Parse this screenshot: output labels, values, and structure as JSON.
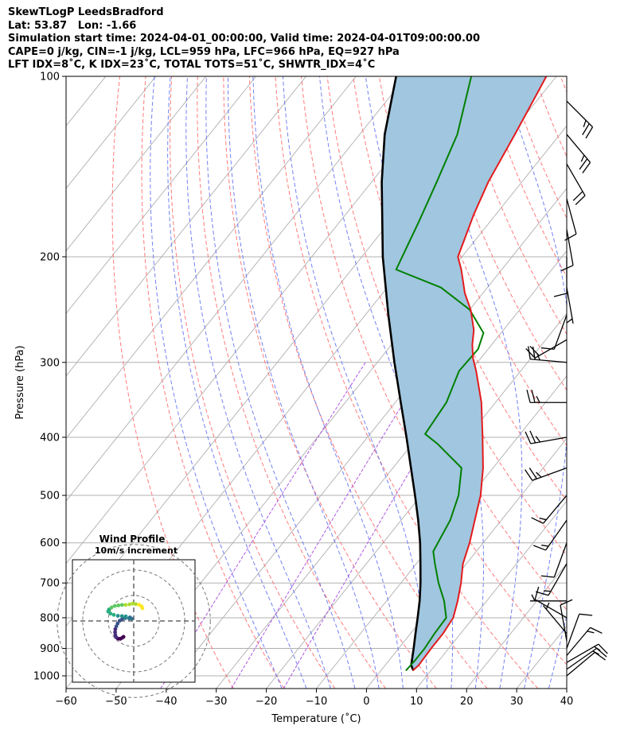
{
  "header": {
    "lines": [
      "SkewTLogP LeedsBradford",
      "Lat: 53.87   Lon: -1.66",
      "Simulation start time: 2024-04-01_00:00:00, Valid time: 2024-04-01T09:00:00.00",
      "CAPE=0 j/kg, CIN=-1 j/kg, LCL=959 hPa, LFC=966 hPa, EQ=927 hPa",
      "LFT IDX=8˚C, K IDX=23˚C, TOTAL TOTS=51˚C, SHWTR_IDX=4˚C"
    ]
  },
  "chart_data": [
    {
      "type": "line",
      "title": "",
      "xlabel": "Temperature (˚C)",
      "ylabel": "Pressure (hPa)",
      "xlim": [
        -60,
        40
      ],
      "ylim": [
        1050,
        100
      ],
      "y_scale": "log",
      "skew": true,
      "x_ticks": [
        -60,
        -50,
        -40,
        -30,
        -20,
        -10,
        0,
        10,
        20,
        30,
        40
      ],
      "y_ticks": [
        1000,
        900,
        800,
        700,
        600,
        500,
        400,
        300,
        200,
        100
      ],
      "grid": true,
      "colors": {
        "temperature": "#e41a1c",
        "dewpoint": "#008000",
        "parcel": "#000000",
        "cape_fill": "#a1c6df",
        "dry_adiabat": "#ff6b6b",
        "moist_adiabat": "#5b6cf0",
        "mixing_ratio": "#9b30d9",
        "isotherm": "#b0b0b0"
      },
      "series": [
        {
          "points": [
            [
              980,
              6.4
            ],
            [
              960,
              6.7
            ],
            [
              900,
              6.5
            ],
            [
              850,
              6.5
            ],
            [
              800,
              6.0
            ],
            [
              750,
              4.2
            ],
            [
              700,
              2.0
            ],
            [
              650,
              -0.7
            ],
            [
              600,
              -2.7
            ],
            [
              550,
              -5.3
            ],
            [
              500,
              -8.1
            ],
            [
              450,
              -12.0
            ],
            [
              400,
              -17.0
            ],
            [
              350,
              -22.8
            ],
            [
              310,
              -28.9
            ],
            [
              295,
              -31.6
            ],
            [
              280,
              -33.9
            ],
            [
              265,
              -35.9
            ],
            [
              245,
              -39.8
            ],
            [
              230,
              -43.6
            ],
            [
              210,
              -48.1
            ],
            [
              200,
              -50.8
            ],
            [
              170,
              -54.4
            ],
            [
              150,
              -56.7
            ],
            [
              125,
              -59.0
            ],
            [
              110,
              -60.7
            ],
            [
              100,
              -62.0
            ]
          ]
        },
        {
          "points": [
            [
              980,
              5.0
            ],
            [
              940,
              5.2
            ],
            [
              900,
              5.2
            ],
            [
              850,
              4.8
            ],
            [
              800,
              4.6
            ],
            [
              750,
              1.5
            ],
            [
              700,
              -2.5
            ],
            [
              650,
              -6.3
            ],
            [
              620,
              -8.6
            ],
            [
              550,
              -10.2
            ],
            [
              500,
              -12.5
            ],
            [
              450,
              -16.3
            ],
            [
              410,
              -25.0
            ],
            [
              395,
              -29.0
            ],
            [
              350,
              -29.8
            ],
            [
              310,
              -32.3
            ],
            [
              285,
              -32.0
            ],
            [
              268,
              -33.5
            ],
            [
              245,
              -40.0
            ],
            [
              225,
              -49.3
            ],
            [
              210,
              -61.1
            ],
            [
              175,
              -64.2
            ],
            [
              150,
              -67.0
            ],
            [
              125,
              -70.5
            ],
            [
              100,
              -77.0
            ]
          ]
        },
        {
          "points": [
            [
              980,
              6.5
            ],
            [
              960,
              5.2
            ],
            [
              900,
              3.0
            ],
            [
              850,
              1.0
            ],
            [
              800,
              -1.1
            ],
            [
              750,
              -3.4
            ],
            [
              700,
              -6.1
            ],
            [
              650,
              -9.2
            ],
            [
              600,
              -12.6
            ],
            [
              550,
              -16.6
            ],
            [
              500,
              -21.2
            ],
            [
              450,
              -26.4
            ],
            [
              400,
              -32.2
            ],
            [
              350,
              -38.9
            ],
            [
              300,
              -46.6
            ],
            [
              250,
              -55.4
            ],
            [
              200,
              -65.8
            ],
            [
              150,
              -78.0
            ],
            [
              125,
              -85.0
            ],
            [
              100,
              -92.0
            ]
          ]
        }
      ],
      "wind_barbs": [
        {
          "p": 1000,
          "speed_kt": 10,
          "dir": 50
        },
        {
          "p": 975,
          "speed_kt": 15,
          "dir": 55
        },
        {
          "p": 950,
          "speed_kt": 15,
          "dir": 60
        },
        {
          "p": 925,
          "speed_kt": 15,
          "dir": 40
        },
        {
          "p": 900,
          "speed_kt": 10,
          "dir": 20
        },
        {
          "p": 875,
          "speed_kt": 10,
          "dir": 350
        },
        {
          "p": 850,
          "speed_kt": 5,
          "dir": 320
        },
        {
          "p": 800,
          "speed_kt": 10,
          "dir": 300
        },
        {
          "p": 750,
          "speed_kt": 5,
          "dir": 270
        },
        {
          "p": 650,
          "speed_kt": 15,
          "dir": 210
        },
        {
          "p": 600,
          "speed_kt": 10,
          "dir": 200
        },
        {
          "p": 550,
          "speed_kt": 15,
          "dir": 215
        },
        {
          "p": 500,
          "speed_kt": 15,
          "dir": 220
        },
        {
          "p": 450,
          "speed_kt": 25,
          "dir": 250
        },
        {
          "p": 400,
          "speed_kt": 25,
          "dir": 260
        },
        {
          "p": 350,
          "speed_kt": 25,
          "dir": 270
        },
        {
          "p": 300,
          "speed_kt": 25,
          "dir": 275
        },
        {
          "p": 275,
          "speed_kt": 20,
          "dir": 240
        },
        {
          "p": 250,
          "speed_kt": 10,
          "dir": 200
        },
        {
          "p": 225,
          "speed_kt": 5,
          "dir": 170
        },
        {
          "p": 200,
          "speed_kt": 10,
          "dir": 180
        },
        {
          "p": 180,
          "speed_kt": 10,
          "dir": 170
        },
        {
          "p": 160,
          "speed_kt": 10,
          "dir": 165
        },
        {
          "p": 140,
          "speed_kt": 20,
          "dir": 150
        },
        {
          "p": 125,
          "speed_kt": 25,
          "dir": 140
        },
        {
          "p": 110,
          "speed_kt": 25,
          "dir": 135
        }
      ]
    },
    {
      "type": "scatter",
      "title": "Wind Profile\n10m/s increment",
      "xlim": [
        -24,
        24
      ],
      "ylim": [
        -24,
        24
      ],
      "rings": [
        10,
        20,
        30
      ],
      "points": [
        [
          -4.0,
          -6.2
        ],
        [
          -4.5,
          -6.6
        ],
        [
          -5.3,
          -7.0
        ],
        [
          -6.2,
          -6.9
        ],
        [
          -6.9,
          -6.4
        ],
        [
          -7.2,
          -5.5
        ],
        [
          -7.3,
          -4.4
        ],
        [
          -7.2,
          -3.2
        ],
        [
          -6.8,
          -2.1
        ],
        [
          -6.3,
          -1.0
        ],
        [
          -5.5,
          0.1
        ],
        [
          -4.5,
          0.8
        ],
        [
          -3.3,
          1.1
        ],
        [
          -1.8,
          1.0
        ],
        [
          -0.8,
          0.9
        ],
        [
          -1.5,
          1.4
        ],
        [
          -3.1,
          1.8
        ],
        [
          -4.6,
          1.9
        ],
        [
          -6.2,
          2.0
        ],
        [
          -7.8,
          2.4
        ],
        [
          -9.1,
          2.9
        ],
        [
          -10.0,
          3.7
        ],
        [
          -9.7,
          4.5
        ],
        [
          -8.7,
          5.3
        ],
        [
          -7.4,
          5.9
        ],
        [
          -6.0,
          6.1
        ],
        [
          -4.6,
          6.3
        ],
        [
          -3.2,
          6.3
        ],
        [
          -1.7,
          6.5
        ],
        [
          -0.4,
          6.8
        ],
        [
          0.8,
          6.6
        ],
        [
          2.0,
          6.4
        ],
        [
          3.0,
          5.8
        ],
        [
          3.4,
          5.0
        ]
      ]
    }
  ]
}
